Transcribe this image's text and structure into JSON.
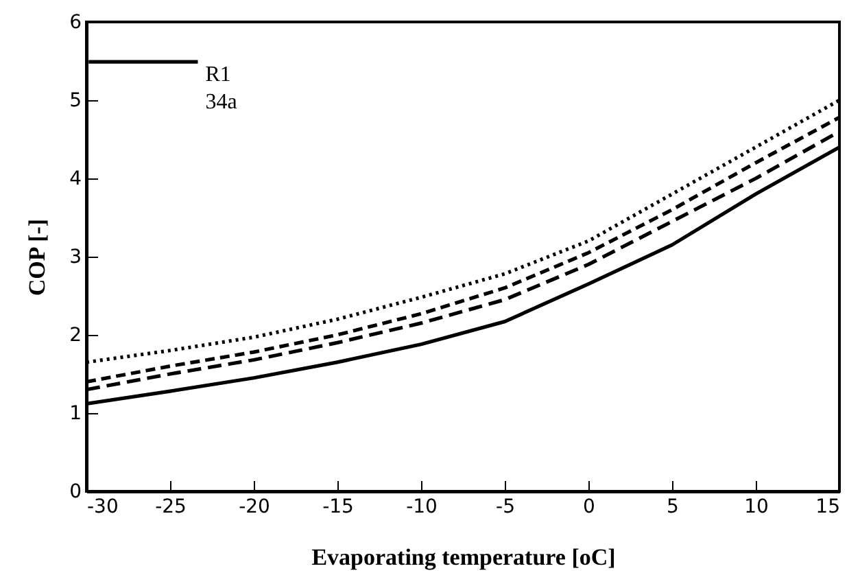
{
  "chart_data": {
    "type": "line",
    "xlabel": "Evaporating temperature [oC]",
    "ylabel": "COP [-]",
    "x": [
      -30,
      -25,
      -20,
      -15,
      -10,
      -5,
      0,
      5,
      10,
      15
    ],
    "series": [
      {
        "name": "R1 34a",
        "color": "#000000",
        "line_style": "solid",
        "values": [
          1.12,
          1.28,
          1.45,
          1.65,
          1.88,
          2.17,
          2.65,
          3.15,
          3.8,
          4.4
        ]
      },
      {
        "color": "#000000",
        "line_style": "dashed",
        "values": [
          1.3,
          1.5,
          1.68,
          1.9,
          2.15,
          2.45,
          2.9,
          3.45,
          4.0,
          4.6
        ]
      },
      {
        "color": "#000000",
        "line_style": "dashed",
        "values": [
          1.4,
          1.6,
          1.78,
          2.0,
          2.27,
          2.6,
          3.05,
          3.6,
          4.2,
          4.78
        ]
      },
      {
        "color": "#000000",
        "line_style": "dotted",
        "values": [
          1.65,
          1.8,
          1.97,
          2.2,
          2.48,
          2.78,
          3.2,
          3.8,
          4.4,
          5.0
        ]
      }
    ],
    "xlim": [
      -30,
      15
    ],
    "xticks": [
      -30,
      -25,
      -20,
      -15,
      -10,
      -5,
      0,
      5,
      10,
      15
    ],
    "ylim": [
      0,
      6
    ],
    "yticks": [
      0,
      1,
      2,
      3,
      4,
      5,
      6
    ],
    "grid": false,
    "legend": "top left",
    "marker": "none"
  }
}
